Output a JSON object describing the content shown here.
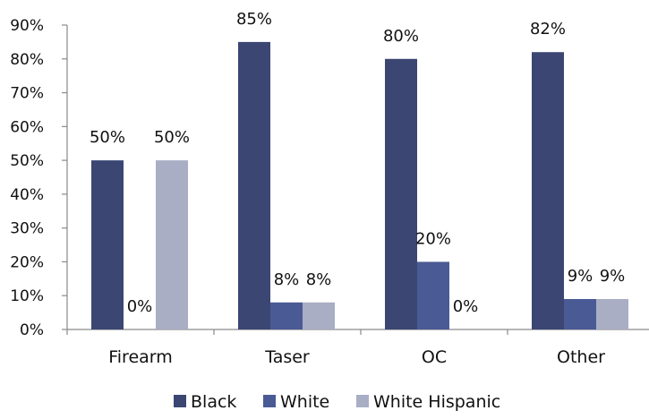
{
  "chart_data": {
    "type": "bar",
    "categories": [
      "Firearm",
      "Taser",
      "OC",
      "Other"
    ],
    "series": [
      {
        "name": "Black",
        "values": [
          50,
          85,
          80,
          82
        ],
        "labels": [
          "50%",
          "85%",
          "80%",
          "82%"
        ],
        "color": "#3b4673"
      },
      {
        "name": "White",
        "values": [
          0,
          8,
          20,
          9
        ],
        "labels": [
          "0%",
          "8%",
          "20%",
          "9%"
        ],
        "color": "#4a5a94"
      },
      {
        "name": "White Hispanic",
        "values": [
          50,
          8,
          0,
          9
        ],
        "labels": [
          "50%",
          "8%",
          "0%",
          "9%"
        ],
        "color": "#a9aec5"
      }
    ],
    "ylim": [
      0,
      90
    ],
    "yticks": [
      "0%",
      "10%",
      "20%",
      "30%",
      "40%",
      "50%",
      "60%",
      "70%",
      "80%",
      "90%"
    ],
    "ytick_values": [
      0,
      10,
      20,
      30,
      40,
      50,
      60,
      70,
      80,
      90
    ],
    "legend_position": "bottom",
    "grid": false
  }
}
